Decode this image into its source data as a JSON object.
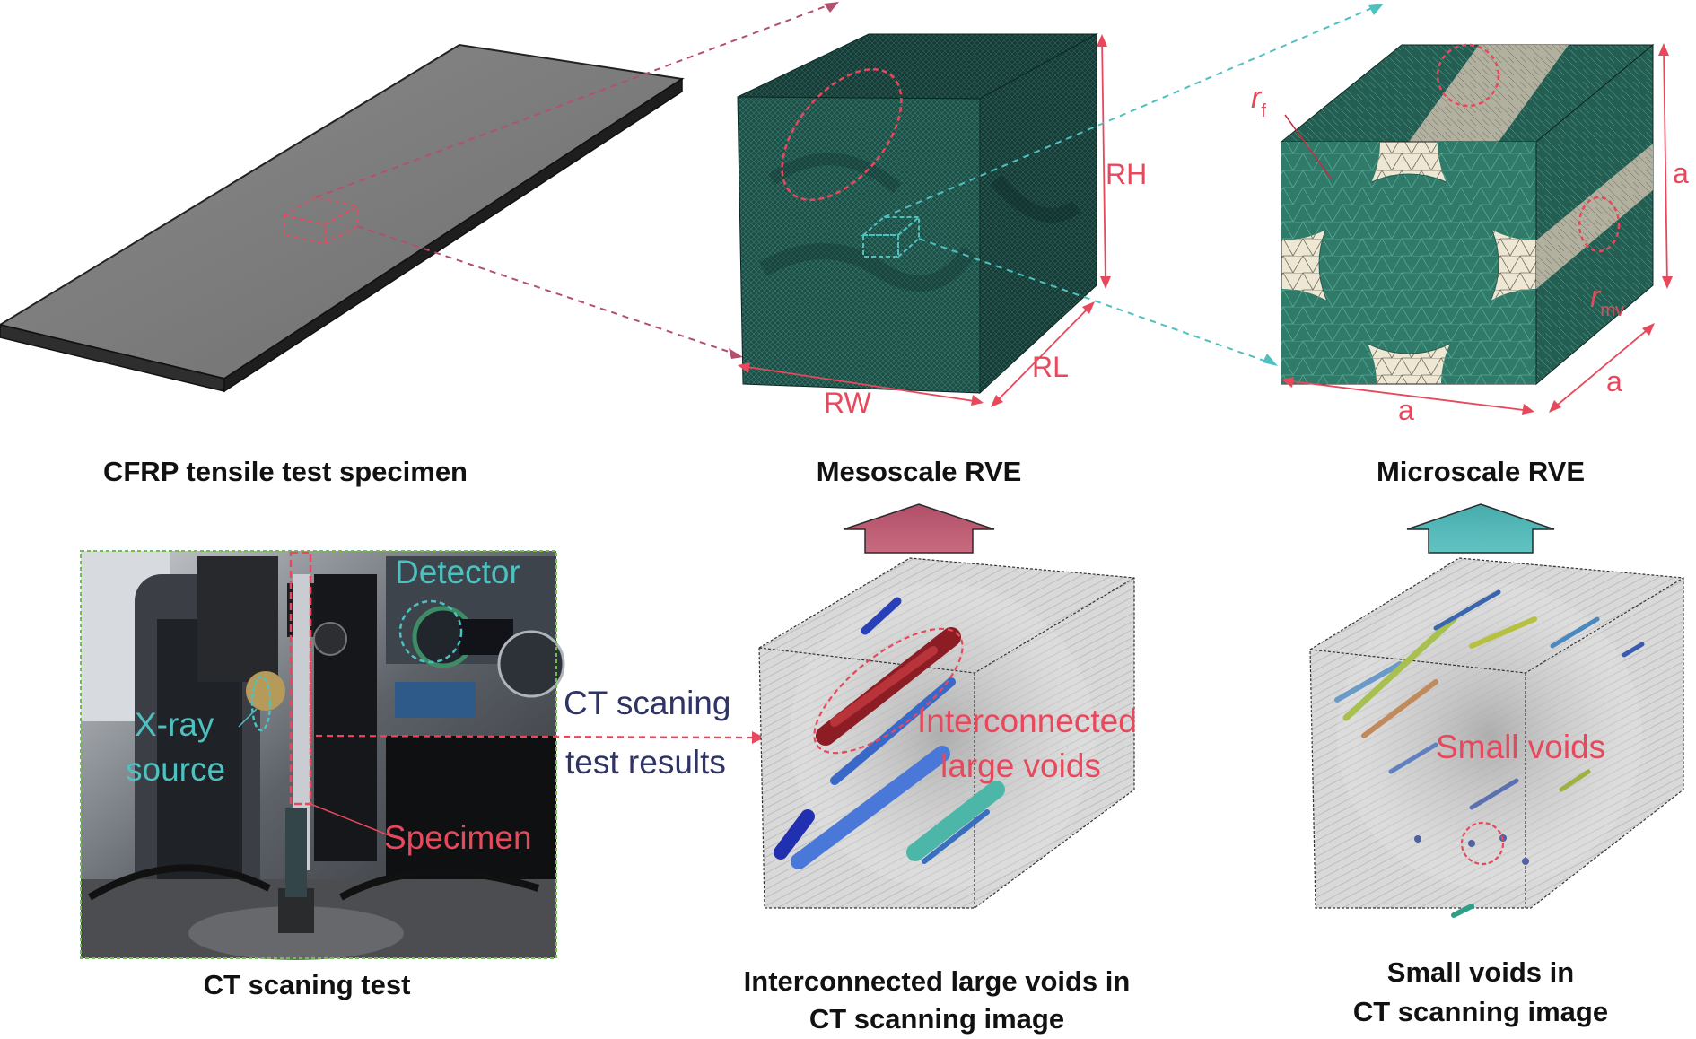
{
  "captions": {
    "specimen": "CFRP tensile test specimen",
    "meso": "Mesoscale RVE",
    "micro": "Microscale RVE",
    "ct_test": "CT scaning test",
    "large_voids_1": "Interconnected large voids in",
    "large_voids_2": "CT scanning image",
    "small_voids_1": "Small voids in",
    "small_voids_2": "CT scanning image"
  },
  "meso_dims": {
    "height": "RH",
    "width": "RW",
    "length": "RL"
  },
  "micro_dims": {
    "side_h": "a",
    "side_w": "a",
    "side_l": "a",
    "fiber_radius": "r",
    "fiber_sub": "f",
    "void_radius": "r",
    "void_sub": "mv"
  },
  "photo_labels": {
    "detector": "Detector",
    "xray_1": "X-ray",
    "xray_2": "source",
    "specimen": "Specimen"
  },
  "flow_labels": {
    "ct_1": "CT scaning",
    "ct_2": "test results"
  },
  "void_labels": {
    "large_1": "Interconnected",
    "large_2": "large voids",
    "small": "Small voids"
  },
  "colors": {
    "red": "#e8485c",
    "teal": "#4fc0c0",
    "navy": "#2f3466",
    "mesh": "#1f5a50",
    "matrix": "#ece6d2",
    "arrow_red": "#bf5a72",
    "arrow_teal": "#55b8b8",
    "photo_border": "#6fbf4f"
  }
}
